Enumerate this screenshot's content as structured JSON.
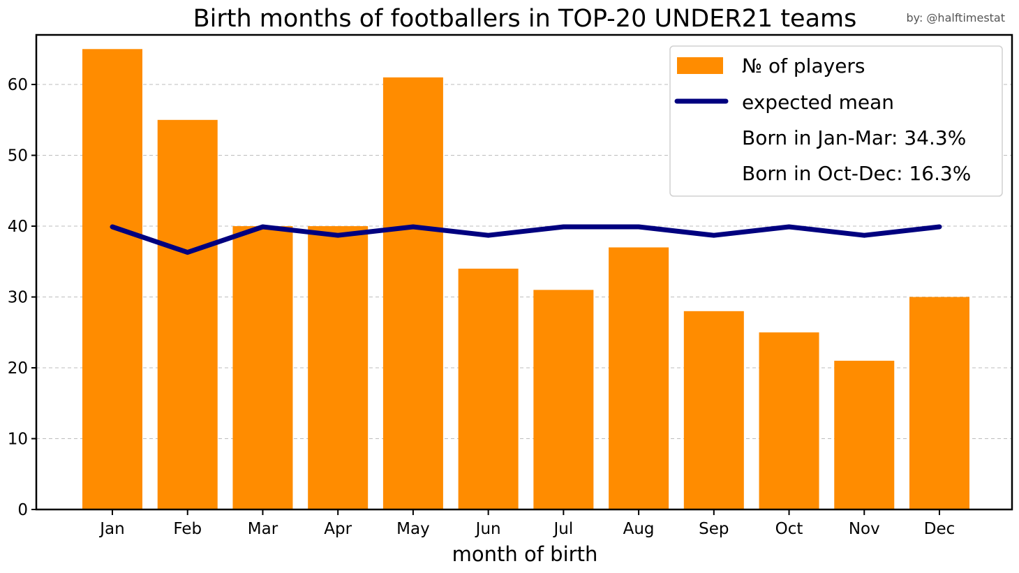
{
  "chart_data": {
    "type": "bar",
    "title": "Birth months of footballers in TOP-20 UNDER21 teams",
    "credit": "by: @halftimestat",
    "xlabel": "month of birth",
    "ylabel": "",
    "categories": [
      "Jan",
      "Feb",
      "Mar",
      "Apr",
      "May",
      "Jun",
      "Jul",
      "Aug",
      "Sep",
      "Oct",
      "Nov",
      "Dec"
    ],
    "series": [
      {
        "name": "№ of players",
        "type": "bar",
        "color": "#ff8c00",
        "values": [
          65,
          55,
          40,
          40,
          61,
          34,
          31,
          37,
          28,
          25,
          21,
          30
        ]
      },
      {
        "name": "expected mean",
        "type": "line",
        "color": "#00007f",
        "values": [
          39.9,
          36.3,
          39.9,
          38.7,
          39.9,
          38.7,
          39.9,
          39.9,
          38.7,
          39.9,
          38.7,
          39.9
        ]
      }
    ],
    "ylim": [
      0,
      67
    ],
    "yticks": [
      0,
      10,
      20,
      30,
      40,
      50,
      60
    ],
    "grid": true,
    "legend_position": "top-right",
    "annotations": [
      "Born in Jan-Mar: 34.3%",
      "Born in Oct-Dec: 16.3%"
    ]
  }
}
